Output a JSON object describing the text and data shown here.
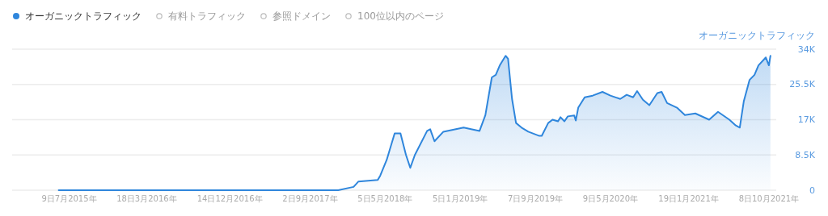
{
  "chart_data": {
    "type": "area",
    "ylabel": "オーガニックトラフィック",
    "legend": "top left",
    "grid": "y",
    "xlim": [
      "2015-01-04",
      "2021-11-01"
    ],
    "ylim": [
      0,
      34000
    ],
    "yticks": [
      0,
      {
        "value": 8500,
        "label": "8.5K"
      },
      {
        "value": 17000,
        "label": "17K"
      },
      {
        "value": 25500,
        "label": "25.5K"
      },
      {
        "value": 34000,
        "label": "34K"
      }
    ],
    "xticks": [
      {
        "value": "2015-07-09",
        "label": "9日7月2015年"
      },
      {
        "value": "2016-03-18",
        "label": "18日3月2016年"
      },
      {
        "value": "2016-12-14",
        "label": "14日12月2016年"
      },
      {
        "value": "2017-09-02",
        "label": "2日9月2017年"
      },
      {
        "value": "2018-05-05",
        "label": "5日5月2018年"
      },
      {
        "value": "2019-01-05",
        "label": "5日1月2019年"
      },
      {
        "value": "2019-09-07",
        "label": "7日9月2019年"
      },
      {
        "value": "2020-05-09",
        "label": "9日5月2020年"
      },
      {
        "value": "2021-01-19",
        "label": "19日1月2021年"
      },
      {
        "value": "2021-10-08",
        "label": "8日10月2021年"
      }
    ],
    "series": [
      {
        "name": "オーガニックトラフィック",
        "color": "#2f86dc",
        "x": [
          "2015-06-05",
          "2017-12-03",
          "2018-01-22",
          "2018-02-07",
          "2018-04-11",
          "2018-04-19",
          "2018-05-10",
          "2018-06-05",
          "2018-06-24",
          "2018-07-12",
          "2018-07-26",
          "2018-08-10",
          "2018-09-19",
          "2018-09-29",
          "2018-10-13",
          "2018-11-11",
          "2019-01-16",
          "2019-03-09",
          "2019-03-28",
          "2019-04-18",
          "2019-05-01",
          "2019-05-14",
          "2019-06-02",
          "2019-06-10",
          "2019-06-23",
          "2019-07-06",
          "2019-07-24",
          "2019-08-15",
          "2019-09-20",
          "2019-09-28",
          "2019-10-19",
          "2019-11-02",
          "2019-11-20",
          "2019-11-28",
          "2019-12-11",
          "2019-12-22",
          "2020-01-12",
          "2020-01-17",
          "2020-01-25",
          "2020-02-15",
          "2020-03-12",
          "2020-04-13",
          "2020-05-09",
          "2020-06-10",
          "2020-07-01",
          "2020-07-22",
          "2020-08-04",
          "2020-08-23",
          "2020-09-13",
          "2020-10-09",
          "2020-10-23",
          "2020-11-10",
          "2020-12-12",
          "2021-01-07",
          "2021-02-10",
          "2021-03-27",
          "2021-04-25",
          "2021-06-01",
          "2021-06-22",
          "2021-07-05",
          "2021-07-18",
          "2021-08-06",
          "2021-08-22",
          "2021-09-04",
          "2021-09-28",
          "2021-10-08",
          "2021-10-13"
        ],
        "values": [
          0,
          0,
          800,
          2100,
          2500,
          3500,
          7300,
          13700,
          13700,
          8500,
          5400,
          8500,
          14300,
          14700,
          11800,
          14100,
          15100,
          14300,
          18100,
          27200,
          27800,
          30100,
          32400,
          31700,
          22000,
          16200,
          15100,
          14100,
          13100,
          13100,
          16200,
          17000,
          16600,
          17600,
          16600,
          17800,
          18000,
          16800,
          19900,
          22400,
          22800,
          23700,
          22800,
          22000,
          23000,
          22400,
          23900,
          21800,
          20500,
          23400,
          23700,
          21000,
          19900,
          18100,
          18500,
          17000,
          18900,
          17000,
          15600,
          15100,
          21400,
          26600,
          27800,
          30100,
          32000,
          30100,
          32400
        ]
      },
      {
        "name": "有料トラフィック",
        "color": "#bbbbbb"
      },
      {
        "name": "参照ドメイン",
        "color": "#bbbbbb"
      },
      {
        "name": "100位以内のページ",
        "color": "#bbbbbb"
      }
    ]
  }
}
